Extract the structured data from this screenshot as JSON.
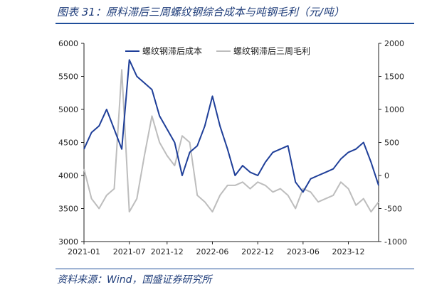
{
  "header": {
    "title": "图表 31：原料滞后三周螺纹钢综合成本与吨钢毛利（元/吨）"
  },
  "footer": {
    "source": "资料来源：Wind，国盛证券研究所"
  },
  "chart_data": {
    "type": "line",
    "title": "图表 31：原料滞后三周螺纹钢综合成本与吨钢毛利（元/吨）",
    "xlabel": "",
    "ylabel": "",
    "x_tick_labels": [
      "2021-01",
      "2021-07",
      "2021-12",
      "2022-06",
      "2022-12",
      "2023-06",
      "2023-12"
    ],
    "x_range": [
      "2021-01",
      "2024-04"
    ],
    "y_left": {
      "ticks": [
        3000,
        3500,
        4000,
        4500,
        5000,
        5500,
        6000
      ],
      "ylim": [
        3000,
        6000
      ]
    },
    "y_right": {
      "ticks": [
        -1000,
        -500,
        0,
        500,
        1000,
        1500,
        2000
      ],
      "ylim": [
        -1000,
        2000
      ]
    },
    "legend_position": "top",
    "grid": false,
    "series": [
      {
        "name": "螺纹钢滞后成本",
        "axis": "left",
        "color": "#1f3f99",
        "points": [
          [
            "2021-01",
            4400
          ],
          [
            "2021-02",
            4650
          ],
          [
            "2021-03",
            4750
          ],
          [
            "2021-04",
            5000
          ],
          [
            "2021-05",
            4700
          ],
          [
            "2021-06",
            4400
          ],
          [
            "2021-07",
            5750
          ],
          [
            "2021-08",
            5500
          ],
          [
            "2021-09",
            5400
          ],
          [
            "2021-10",
            5300
          ],
          [
            "2021-11",
            4900
          ],
          [
            "2021-12",
            4700
          ],
          [
            "2022-01",
            4500
          ],
          [
            "2022-02",
            4000
          ],
          [
            "2022-03",
            4350
          ],
          [
            "2022-04",
            4450
          ],
          [
            "2022-05",
            4750
          ],
          [
            "2022-06",
            5200
          ],
          [
            "2022-07",
            4750
          ],
          [
            "2022-08",
            4400
          ],
          [
            "2022-09",
            4000
          ],
          [
            "2022-10",
            4150
          ],
          [
            "2022-11",
            4050
          ],
          [
            "2022-12",
            4000
          ],
          [
            "2023-01",
            4200
          ],
          [
            "2023-02",
            4350
          ],
          [
            "2023-03",
            4400
          ],
          [
            "2023-04",
            4450
          ],
          [
            "2023-05",
            3900
          ],
          [
            "2023-06",
            3750
          ],
          [
            "2023-07",
            3950
          ],
          [
            "2023-08",
            4000
          ],
          [
            "2023-09",
            4050
          ],
          [
            "2023-10",
            4100
          ],
          [
            "2023-11",
            4250
          ],
          [
            "2023-12",
            4350
          ],
          [
            "2024-01",
            4400
          ],
          [
            "2024-02",
            4500
          ],
          [
            "2024-03",
            4200
          ],
          [
            "2024-04",
            3850
          ]
        ]
      },
      {
        "name": "螺纹钢滞后三周毛利",
        "axis": "right",
        "color": "#bdbdbd",
        "points": [
          [
            "2021-01",
            100
          ],
          [
            "2021-02",
            -350
          ],
          [
            "2021-03",
            -500
          ],
          [
            "2021-04",
            -300
          ],
          [
            "2021-05",
            -200
          ],
          [
            "2021-06",
            1600
          ],
          [
            "2021-07",
            -550
          ],
          [
            "2021-08",
            -350
          ],
          [
            "2021-09",
            300
          ],
          [
            "2021-10",
            900
          ],
          [
            "2021-11",
            500
          ],
          [
            "2021-12",
            300
          ],
          [
            "2022-01",
            150
          ],
          [
            "2022-02",
            600
          ],
          [
            "2022-03",
            500
          ],
          [
            "2022-04",
            -300
          ],
          [
            "2022-05",
            -400
          ],
          [
            "2022-06",
            -550
          ],
          [
            "2022-07",
            -300
          ],
          [
            "2022-08",
            -150
          ],
          [
            "2022-09",
            -150
          ],
          [
            "2022-10",
            -100
          ],
          [
            "2022-11",
            -200
          ],
          [
            "2022-12",
            -100
          ],
          [
            "2023-01",
            -150
          ],
          [
            "2023-02",
            -250
          ],
          [
            "2023-03",
            -200
          ],
          [
            "2023-04",
            -300
          ],
          [
            "2023-05",
            -500
          ],
          [
            "2023-06",
            -200
          ],
          [
            "2023-07",
            -250
          ],
          [
            "2023-08",
            -400
          ],
          [
            "2023-09",
            -350
          ],
          [
            "2023-10",
            -300
          ],
          [
            "2023-11",
            -100
          ],
          [
            "2023-12",
            -200
          ],
          [
            "2024-01",
            -450
          ],
          [
            "2024-02",
            -350
          ],
          [
            "2024-03",
            -550
          ],
          [
            "2024-04",
            -400
          ]
        ]
      }
    ]
  }
}
